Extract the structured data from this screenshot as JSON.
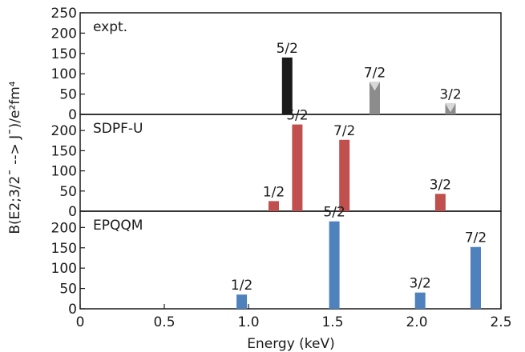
{
  "chart_data": {
    "type": "bar",
    "xlabel": "Energy (keV)",
    "ylabel": "B(E2;3/2¯ --> J¯)/e²fm⁴",
    "x_ticks": [
      "0",
      "0.5",
      "1.0",
      "1.5",
      "2.0",
      "2.5"
    ],
    "xlim": [
      0,
      2.5
    ],
    "panels": [
      {
        "name": "expt.",
        "ylim": [
          0,
          250
        ],
        "y_ticks": [
          "0",
          "50",
          "100",
          "150",
          "200",
          "250"
        ],
        "bars": [
          {
            "label": "5/2",
            "x": 1.23,
            "value": 140,
            "color": "#1a1a1a",
            "upper_limit": false
          },
          {
            "label": "7/2",
            "x": 1.75,
            "value": 80,
            "color": "#8c8c8c",
            "upper_limit": true
          },
          {
            "label": "3/2",
            "x": 2.2,
            "value": 27,
            "color": "#8c8c8c",
            "upper_limit": true
          }
        ]
      },
      {
        "name": "SDPF-U",
        "ylim": [
          0,
          240
        ],
        "y_ticks": [
          "0",
          "50",
          "100",
          "150",
          "200"
        ],
        "bars": [
          {
            "label": "1/2",
            "x": 1.15,
            "value": 25,
            "color": "#c0504d"
          },
          {
            "label": "5/2",
            "x": 1.29,
            "value": 215,
            "color": "#c0504d"
          },
          {
            "label": "7/2",
            "x": 1.57,
            "value": 177,
            "color": "#c0504d"
          },
          {
            "label": "3/2",
            "x": 2.14,
            "value": 43,
            "color": "#c0504d"
          }
        ]
      },
      {
        "name": "EPQQM",
        "ylim": [
          0,
          240
        ],
        "y_ticks": [
          "0",
          "50",
          "100",
          "150",
          "200"
        ],
        "bars": [
          {
            "label": "1/2",
            "x": 0.96,
            "value": 35,
            "color": "#4f81bd"
          },
          {
            "label": "5/2",
            "x": 1.51,
            "value": 215,
            "color": "#4f81bd"
          },
          {
            "label": "3/2",
            "x": 2.02,
            "value": 40,
            "color": "#4f81bd"
          },
          {
            "label": "7/2",
            "x": 2.35,
            "value": 152,
            "color": "#4f81bd"
          }
        ]
      }
    ]
  }
}
